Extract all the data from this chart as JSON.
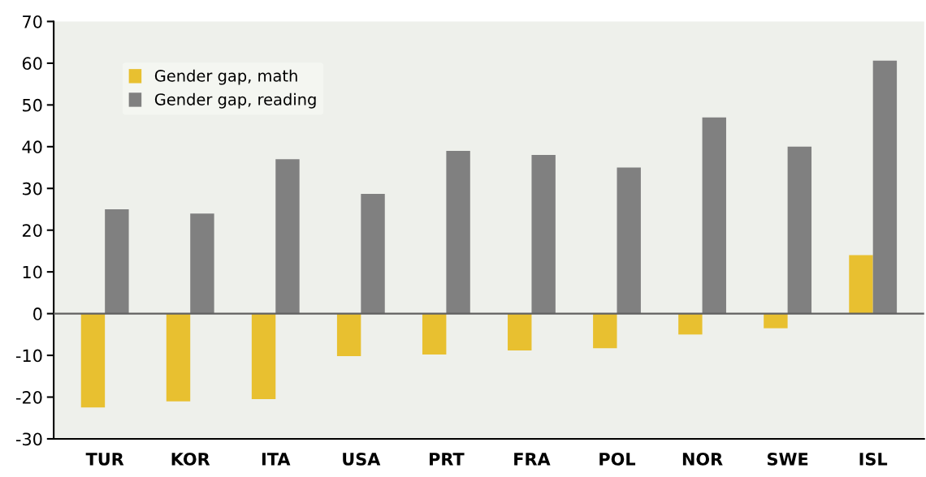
{
  "chart_data": {
    "type": "bar",
    "categories": [
      "TUR",
      "KOR",
      "ITA",
      "USA",
      "PRT",
      "FRA",
      "POL",
      "NOR",
      "SWE",
      "ISL"
    ],
    "series": [
      {
        "name": "Gender gap, math",
        "color": "#e8c030",
        "values": [
          -22.5,
          -21,
          -20.5,
          -10.2,
          -9.8,
          -8.8,
          -8.3,
          -5,
          -3.5,
          14
        ]
      },
      {
        "name": "Gender gap, reading",
        "color": "#808080",
        "values": [
          25,
          24,
          37,
          28.7,
          39,
          38,
          35,
          47,
          40,
          60.6
        ]
      }
    ],
    "ylim": [
      -30,
      70
    ],
    "yticks": [
      -30,
      -20,
      -10,
      0,
      10,
      20,
      30,
      40,
      50,
      60,
      70
    ],
    "ref_lines": [
      {
        "axis": "y",
        "value": 0,
        "color": "#606060"
      }
    ],
    "grid": false,
    "legend": "top left"
  }
}
